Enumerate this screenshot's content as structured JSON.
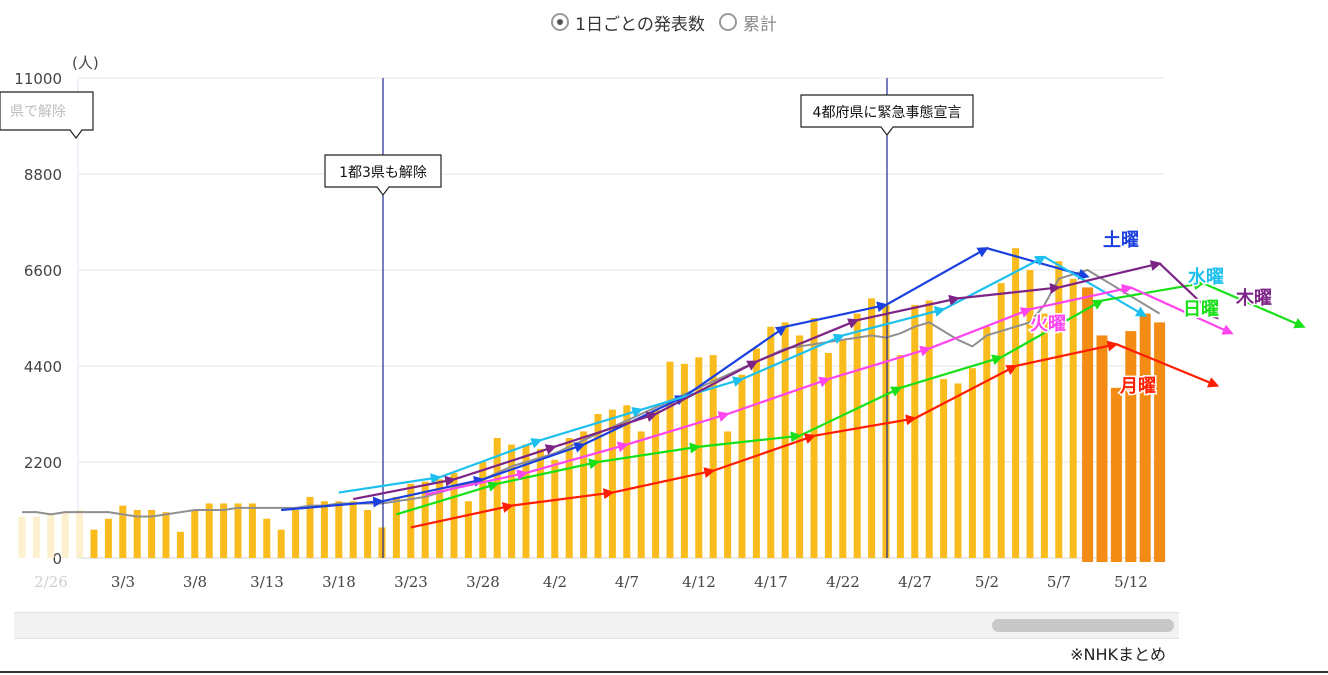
{
  "toggle": {
    "options": [
      {
        "label": "1日ごとの発表数",
        "selected": true
      },
      {
        "label": "累計",
        "selected": false
      }
    ]
  },
  "source_note": "※NHKまとめ",
  "chart_data": {
    "type": "bar",
    "y_unit_label": "(人)",
    "ylim": [
      0,
      11000
    ],
    "y_ticks": [
      0,
      2200,
      4400,
      6600,
      8800,
      11000
    ],
    "x_tick_labels": [
      "2/26",
      "3/3",
      "3/8",
      "3/13",
      "3/18",
      "3/23",
      "3/28",
      "4/2",
      "4/7",
      "4/12",
      "4/17",
      "4/22",
      "4/27",
      "5/2",
      "5/7",
      "5/12"
    ],
    "x_start_date": "2/26",
    "grid": true,
    "bar_colors": {
      "faded": "#fdf0cf",
      "normal": "#f9bc1c",
      "recent": "#f28c15"
    },
    "values": [
      950,
      950,
      1000,
      1050,
      1100,
      650,
      900,
      1200,
      1100,
      1100,
      1050,
      600,
      1100,
      1250,
      1250,
      1250,
      1250,
      900,
      650,
      1100,
      1400,
      1300,
      1300,
      1300,
      1100,
      700,
      1400,
      1700,
      1750,
      1800,
      1950,
      1300,
      2200,
      2750,
      2600,
      2600,
      2500,
      2250,
      2750,
      2900,
      3300,
      3400,
      3500,
      2900,
      3400,
      4500,
      4450,
      4600,
      4650,
      2900,
      4200,
      4800,
      5300,
      5400,
      5100,
      5500,
      4700,
      5000,
      5600,
      5950,
      5800,
      4650,
      5800,
      5900,
      4100,
      4000,
      4350,
      5300,
      6300,
      7100,
      6600,
      5600,
      6800,
      6400,
      6200,
      5100,
      3900,
      5200,
      5600,
      5400
    ],
    "series": [
      {
        "name": "土曜",
        "color": "#1b40e0",
        "points": [
          [
            18,
            1100
          ],
          [
            25,
            1300
          ],
          [
            32,
            1800
          ],
          [
            39,
            2600
          ],
          [
            46,
            3700
          ],
          [
            53,
            5300
          ],
          [
            60,
            5800
          ],
          [
            67,
            7100
          ],
          [
            74,
            6450
          ]
        ]
      },
      {
        "name": "水曜",
        "color": "#1ec0f0",
        "points": [
          [
            22,
            1500
          ],
          [
            29,
            1850
          ],
          [
            36,
            2700
          ],
          [
            43,
            3400
          ],
          [
            50,
            4100
          ],
          [
            57,
            5100
          ],
          [
            64,
            5700
          ],
          [
            71,
            6900
          ],
          [
            78,
            5550
          ]
        ]
      },
      {
        "name": "日曜",
        "color": "#18e018",
        "points": [
          [
            26,
            1000
          ],
          [
            33,
            1700
          ],
          [
            40,
            2200
          ],
          [
            47,
            2550
          ],
          [
            54,
            2800
          ],
          [
            61,
            3900
          ],
          [
            68,
            4600
          ],
          [
            75,
            5900
          ],
          [
            82,
            6300
          ],
          [
            89,
            5300
          ]
        ]
      },
      {
        "name": "木曜",
        "color": "#7d2487",
        "points": [
          [
            23,
            1350
          ],
          [
            30,
            1800
          ],
          [
            37,
            2550
          ],
          [
            44,
            3300
          ],
          [
            51,
            4500
          ],
          [
            58,
            5450
          ],
          [
            65,
            5950
          ],
          [
            72,
            6200
          ],
          [
            79,
            6750
          ],
          [
            83,
            5500
          ]
        ]
      },
      {
        "name": "火曜",
        "color": "#ff45ee",
        "points": [
          [
            28,
            1450
          ],
          [
            35,
            1950
          ],
          [
            42,
            2600
          ],
          [
            49,
            3300
          ],
          [
            56,
            4100
          ],
          [
            63,
            4800
          ],
          [
            70,
            5700
          ],
          [
            77,
            6200
          ],
          [
            84,
            5150
          ]
        ]
      },
      {
        "name": "月曜",
        "color": "#ff1e00",
        "points": [
          [
            27,
            700
          ],
          [
            34,
            1200
          ],
          [
            41,
            1500
          ],
          [
            48,
            2000
          ],
          [
            55,
            2800
          ],
          [
            62,
            3200
          ],
          [
            69,
            4400
          ],
          [
            76,
            4900
          ],
          [
            83,
            3950
          ]
        ]
      }
    ],
    "trend_line": {
      "color": "#8f8f8f",
      "values": [
        1050,
        1050,
        1000,
        1050,
        1050,
        1050,
        1050,
        1000,
        950,
        950,
        1000,
        1050,
        1100,
        1100,
        1100,
        1150,
        1150,
        1150,
        1150,
        1150,
        1200,
        1200,
        1250,
        1250,
        1250,
        1250,
        1300,
        1350,
        1400,
        1500,
        1600,
        1700,
        1800,
        1950,
        2100,
        2200,
        2300,
        2400,
        2550,
        2700,
        2850,
        3000,
        3150,
        3300,
        3450,
        3600,
        3750,
        3900,
        4050,
        4200,
        4350,
        4500,
        4650,
        4800,
        4850,
        4900,
        4950,
        5000,
        5050,
        5100,
        5050,
        5150,
        5300,
        5400,
        5200,
        5000,
        4850,
        5100,
        5200,
        5300,
        5400,
        5800,
        6400,
        6500,
        6600,
        6400,
        6200,
        6000,
        5800,
        5600
      ]
    },
    "state_lines": [
      {
        "index": 25,
        "label": "1都3県も解除"
      },
      {
        "index": 60,
        "label": "4都府県に緊急事態宣言"
      }
    ],
    "clipped_annotation": "県で解除"
  }
}
